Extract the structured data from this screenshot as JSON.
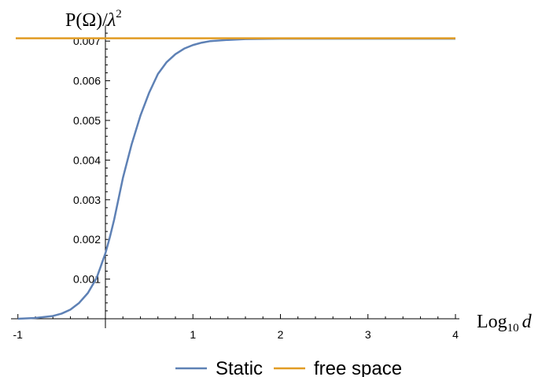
{
  "chart_data": {
    "type": "line",
    "ylabel": {
      "base": "P(Ω)/",
      "var": "λ",
      "sup": "2"
    },
    "xlabel": {
      "base": "Log",
      "sub": "10",
      "var": "d"
    },
    "xlim": [
      -1,
      4
    ],
    "ylim": [
      -7e-05,
      0.0074
    ],
    "x_ticks": [
      {
        "value": -1,
        "label": "-1"
      },
      {
        "value": 1,
        "label": "1"
      },
      {
        "value": 2,
        "label": "2"
      },
      {
        "value": 3,
        "label": "3"
      },
      {
        "value": 4,
        "label": "4"
      }
    ],
    "y_ticks": [
      {
        "value": 0.001,
        "label": "0.001"
      },
      {
        "value": 0.002,
        "label": "0.002"
      },
      {
        "value": 0.003,
        "label": "0.003"
      },
      {
        "value": 0.004,
        "label": "0.004"
      },
      {
        "value": 0.005,
        "label": "0.005"
      },
      {
        "value": 0.006,
        "label": "0.006"
      },
      {
        "value": 0.007,
        "label": "0.007"
      }
    ],
    "series": [
      {
        "name": "Static",
        "color": "#5E81B5",
        "x": [
          -1,
          -0.8,
          -0.6,
          -0.5,
          -0.4,
          -0.3,
          -0.2,
          -0.1,
          0,
          0.05,
          0.1,
          0.2,
          0.3,
          0.4,
          0.5,
          0.6,
          0.7,
          0.8,
          0.9,
          1.0,
          1.1,
          1.2,
          1.4,
          1.6,
          2.0,
          2.5,
          3.0,
          3.5,
          4.0
        ],
        "values": [
          0,
          2e-05,
          7e-05,
          0.00013,
          0.00023,
          0.0004,
          0.00065,
          0.00103,
          0.00165,
          0.00205,
          0.0025,
          0.00355,
          0.0044,
          0.00512,
          0.0057,
          0.00617,
          0.00647,
          0.00667,
          0.00681,
          0.0069,
          0.00696,
          0.007,
          0.00703,
          0.00705,
          0.00706,
          0.00706,
          0.00706,
          0.00706,
          0.00706
        ]
      },
      {
        "name": "free space",
        "color": "#E19C24",
        "x": [
          -1.1,
          4.0
        ],
        "values": [
          0.00707,
          0.00707
        ]
      }
    ],
    "grid": false,
    "legend": "bottom-center"
  }
}
